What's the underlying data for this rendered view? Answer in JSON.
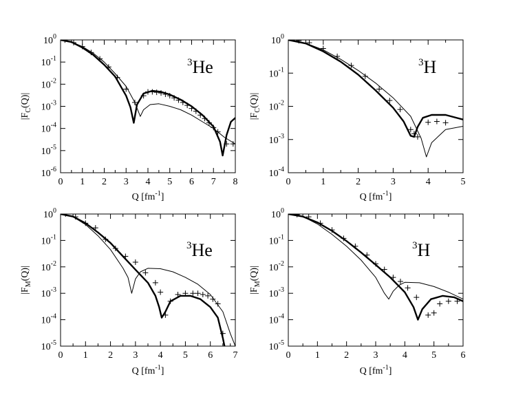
{
  "figure": {
    "panels": [
      {
        "nucleus_mass": "3",
        "nucleus_symbol": "He",
        "ylabel": {
          "pre": "|F",
          "sub": "C",
          "post": "(Q)|"
        },
        "xlabel": {
          "pre": "Q [fm",
          "sup": "-1",
          "post": "]"
        }
      },
      {
        "nucleus_mass": "3",
        "nucleus_symbol": "H",
        "ylabel": {
          "pre": "|F",
          "sub": "C",
          "post": "(Q)|"
        },
        "xlabel": {
          "pre": "Q [fm",
          "sup": "-1",
          "post": "]"
        }
      },
      {
        "nucleus_mass": "3",
        "nucleus_symbol": "He",
        "ylabel": {
          "pre": "|F",
          "sub": "M",
          "post": "(Q)|"
        },
        "xlabel": {
          "pre": "Q [fm",
          "sup": "-1",
          "post": "]"
        }
      },
      {
        "nucleus_mass": "3",
        "nucleus_symbol": "H",
        "ylabel": {
          "pre": "|F",
          "sub": "M",
          "post": "(Q)|"
        },
        "xlabel": {
          "pre": "Q [fm",
          "sup": "-1",
          "post": "]"
        }
      }
    ]
  },
  "chart_data": [
    {
      "type": "line",
      "yscale": "log",
      "xlim": [
        0,
        8
      ],
      "ylim_exp": [
        -6,
        0
      ],
      "xticks": [
        0,
        1,
        2,
        3,
        4,
        5,
        6,
        7,
        8
      ],
      "yticks_exp": [
        -6,
        -5,
        -4,
        -3,
        -2,
        -1,
        0
      ],
      "annotation": "3He",
      "series": [
        {
          "style": "thick",
          "points": [
            [
              0,
              1
            ],
            [
              0.5,
              0.8
            ],
            [
              1,
              0.45
            ],
            [
              1.5,
              0.21
            ],
            [
              2,
              0.075
            ],
            [
              2.5,
              0.022
            ],
            [
              3,
              0.003
            ],
            [
              3.2,
              0.0009
            ],
            [
              3.35,
              0.00018
            ],
            [
              3.5,
              0.0012
            ],
            [
              3.8,
              0.0038
            ],
            [
              4.2,
              0.005
            ],
            [
              4.6,
              0.0045
            ],
            [
              5,
              0.0034
            ],
            [
              5.5,
              0.002
            ],
            [
              6,
              0.001
            ],
            [
              6.5,
              0.0004
            ],
            [
              7,
              0.00012
            ],
            [
              7.3,
              2.5e-05
            ],
            [
              7.42,
              6e-06
            ],
            [
              7.6,
              5e-05
            ],
            [
              7.8,
              0.0002
            ],
            [
              8,
              0.0003
            ]
          ]
        },
        {
          "style": "thin",
          "points": [
            [
              0,
              1
            ],
            [
              0.5,
              0.82
            ],
            [
              1,
              0.5
            ],
            [
              1.5,
              0.25
            ],
            [
              2,
              0.1
            ],
            [
              2.5,
              0.03
            ],
            [
              3,
              0.008
            ],
            [
              3.4,
              0.0015
            ],
            [
              3.65,
              0.00035
            ],
            [
              3.8,
              0.0007
            ],
            [
              4.1,
              0.0012
            ],
            [
              4.5,
              0.0013
            ],
            [
              5,
              0.001
            ],
            [
              5.5,
              0.0007
            ],
            [
              6,
              0.0004
            ],
            [
              6.5,
              0.0002
            ],
            [
              7,
              0.0001
            ],
            [
              7.5,
              4e-05
            ],
            [
              8,
              2e-05
            ]
          ]
        },
        {
          "style": "markers",
          "points": [
            [
              0.2,
              0.98
            ],
            [
              0.6,
              0.75
            ],
            [
              1,
              0.5
            ],
            [
              1.4,
              0.27
            ],
            [
              1.8,
              0.14
            ],
            [
              2.2,
              0.06
            ],
            [
              2.6,
              0.02
            ],
            [
              3,
              0.006
            ],
            [
              3.4,
              0.0015
            ],
            [
              3.8,
              0.003
            ],
            [
              4.0,
              0.0045
            ],
            [
              4.2,
              0.0045
            ],
            [
              4.4,
              0.0043
            ],
            [
              4.6,
              0.004
            ],
            [
              4.8,
              0.0035
            ],
            [
              5.0,
              0.003
            ],
            [
              5.2,
              0.0024
            ],
            [
              5.4,
              0.0019
            ],
            [
              5.6,
              0.0015
            ],
            [
              5.8,
              0.0011
            ],
            [
              6.0,
              0.0008
            ],
            [
              6.2,
              0.0006
            ],
            [
              6.4,
              0.0004
            ],
            [
              6.6,
              0.00028
            ],
            [
              6.8,
              0.00018
            ],
            [
              7.0,
              0.00011
            ],
            [
              7.2,
              7e-05
            ],
            [
              7.6,
              2e-05
            ],
            [
              7.9,
              2e-05
            ]
          ]
        }
      ]
    },
    {
      "type": "line",
      "yscale": "log",
      "xlim": [
        0,
        5
      ],
      "ylim_exp": [
        -4,
        0
      ],
      "xticks": [
        0,
        1,
        2,
        3,
        4,
        5
      ],
      "yticks_exp": [
        -4,
        -3,
        -2,
        -1,
        0
      ],
      "annotation": "3H",
      "series": [
        {
          "style": "thick",
          "points": [
            [
              0,
              1
            ],
            [
              0.5,
              0.78
            ],
            [
              1,
              0.45
            ],
            [
              1.5,
              0.22
            ],
            [
              2,
              0.09
            ],
            [
              2.5,
              0.03
            ],
            [
              3,
              0.009
            ],
            [
              3.3,
              0.0035
            ],
            [
              3.5,
              0.0013
            ],
            [
              3.6,
              0.0012
            ],
            [
              3.7,
              0.0024
            ],
            [
              3.85,
              0.0045
            ],
            [
              4.1,
              0.0055
            ],
            [
              4.5,
              0.0055
            ],
            [
              5,
              0.004
            ]
          ]
        },
        {
          "style": "thin",
          "points": [
            [
              0,
              1
            ],
            [
              0.5,
              0.8
            ],
            [
              1,
              0.5
            ],
            [
              1.5,
              0.26
            ],
            [
              2,
              0.12
            ],
            [
              2.5,
              0.05
            ],
            [
              3,
              0.018
            ],
            [
              3.5,
              0.005
            ],
            [
              3.8,
              0.0011
            ],
            [
              3.95,
              0.0003
            ],
            [
              4.1,
              0.0008
            ],
            [
              4.5,
              0.002
            ],
            [
              5,
              0.0025
            ]
          ]
        },
        {
          "style": "markers",
          "points": [
            [
              0.3,
              0.95
            ],
            [
              0.6,
              0.82
            ],
            [
              1,
              0.55
            ],
            [
              1.4,
              0.32
            ],
            [
              1.8,
              0.17
            ],
            [
              2.2,
              0.08
            ],
            [
              2.6,
              0.033
            ],
            [
              2.9,
              0.015
            ],
            [
              3.2,
              0.008
            ],
            [
              3.5,
              0.002
            ],
            [
              3.6,
              0.0015
            ],
            [
              3.7,
              0.0012
            ],
            [
              4.0,
              0.0033
            ],
            [
              4.25,
              0.0035
            ],
            [
              4.5,
              0.0032
            ]
          ]
        }
      ]
    },
    {
      "type": "line",
      "yscale": "log",
      "xlim": [
        0,
        7
      ],
      "ylim_exp": [
        -5,
        0
      ],
      "xticks": [
        0,
        1,
        2,
        3,
        4,
        5,
        6,
        7
      ],
      "yticks_exp": [
        -5,
        -4,
        -3,
        -2,
        -1,
        0
      ],
      "annotation": "3He",
      "series": [
        {
          "style": "thick",
          "points": [
            [
              0,
              1
            ],
            [
              0.5,
              0.8
            ],
            [
              1,
              0.45
            ],
            [
              1.5,
              0.2
            ],
            [
              2,
              0.08
            ],
            [
              2.5,
              0.025
            ],
            [
              3,
              0.0078
            ],
            [
              3.5,
              0.0025
            ],
            [
              3.8,
              0.0008
            ],
            [
              3.95,
              0.0003
            ],
            [
              4.05,
              0.00012
            ],
            [
              4.2,
              0.0002
            ],
            [
              4.4,
              0.0005
            ],
            [
              4.8,
              0.0008
            ],
            [
              5.2,
              0.0008
            ],
            [
              5.6,
              0.0006
            ],
            [
              6,
              0.0003
            ],
            [
              6.3,
              0.00012
            ],
            [
              6.5,
              2e-05
            ],
            [
              6.6,
              7e-06
            ],
            [
              6.7,
              6e-06
            ],
            [
              7,
              1e-05
            ]
          ]
        },
        {
          "style": "thin",
          "points": [
            [
              0,
              1
            ],
            [
              0.5,
              0.78
            ],
            [
              1,
              0.4
            ],
            [
              1.5,
              0.15
            ],
            [
              2,
              0.045
            ],
            [
              2.5,
              0.009
            ],
            [
              2.7,
              0.004
            ],
            [
              2.85,
              0.001
            ],
            [
              3.0,
              0.0035
            ],
            [
              3.2,
              0.0065
            ],
            [
              3.5,
              0.0088
            ],
            [
              4,
              0.0085
            ],
            [
              4.5,
              0.0065
            ],
            [
              5,
              0.004
            ],
            [
              5.5,
              0.0022
            ],
            [
              6,
              0.0009
            ],
            [
              6.5,
              0.0002
            ],
            [
              6.8,
              3e-05
            ],
            [
              7,
              1e-05
            ]
          ]
        },
        {
          "style": "markers",
          "points": [
            [
              0.2,
              1
            ],
            [
              0.6,
              0.78
            ],
            [
              1,
              0.45
            ],
            [
              1.4,
              0.3
            ],
            [
              1.8,
              0.11
            ],
            [
              2.2,
              0.05
            ],
            [
              2.6,
              0.025
            ],
            [
              3,
              0.015
            ],
            [
              3.4,
              0.006
            ],
            [
              3.8,
              0.0025
            ],
            [
              4.0,
              0.0011
            ],
            [
              4.2,
              0.00015
            ],
            [
              4.4,
              0.0005
            ],
            [
              4.7,
              0.0009
            ],
            [
              5.0,
              0.001
            ],
            [
              5.3,
              0.001
            ],
            [
              5.5,
              0.001
            ],
            [
              5.7,
              0.0009
            ],
            [
              5.9,
              0.0008
            ],
            [
              6.1,
              0.0006
            ],
            [
              6.3,
              0.0004
            ],
            [
              6.5,
              3e-05
            ],
            [
              6.8,
              1e-05
            ]
          ]
        }
      ]
    },
    {
      "type": "line",
      "yscale": "log",
      "xlim": [
        0,
        6
      ],
      "ylim_exp": [
        -5,
        0
      ],
      "xticks": [
        0,
        1,
        2,
        3,
        4,
        5,
        6
      ],
      "yticks_exp": [
        -5,
        -4,
        -3,
        -2,
        -1,
        0
      ],
      "annotation": "3H",
      "series": [
        {
          "style": "thick",
          "points": [
            [
              0,
              1
            ],
            [
              0.5,
              0.8
            ],
            [
              1,
              0.48
            ],
            [
              1.5,
              0.23
            ],
            [
              2,
              0.095
            ],
            [
              2.5,
              0.035
            ],
            [
              3,
              0.012
            ],
            [
              3.5,
              0.004
            ],
            [
              4,
              0.0011
            ],
            [
              4.3,
              0.0003
            ],
            [
              4.45,
              0.0001
            ],
            [
              4.6,
              0.00025
            ],
            [
              4.9,
              0.0006
            ],
            [
              5.3,
              0.0008
            ],
            [
              5.7,
              0.0007
            ],
            [
              6,
              0.0005
            ]
          ]
        },
        {
          "style": "thin",
          "points": [
            [
              0,
              1
            ],
            [
              0.5,
              0.8
            ],
            [
              1,
              0.42
            ],
            [
              1.5,
              0.17
            ],
            [
              2,
              0.06
            ],
            [
              2.5,
              0.018
            ],
            [
              3,
              0.004
            ],
            [
              3.3,
              0.001
            ],
            [
              3.45,
              0.0006
            ],
            [
              3.6,
              0.0012
            ],
            [
              3.8,
              0.002
            ],
            [
              4.0,
              0.0026
            ],
            [
              4.5,
              0.0025
            ],
            [
              5,
              0.0018
            ],
            [
              5.5,
              0.0011
            ],
            [
              6,
              0.0006
            ]
          ]
        },
        {
          "style": "markers",
          "points": [
            [
              0.3,
              0.95
            ],
            [
              0.7,
              0.78
            ],
            [
              1.1,
              0.45
            ],
            [
              1.5,
              0.25
            ],
            [
              1.9,
              0.12
            ],
            [
              2.3,
              0.06
            ],
            [
              2.7,
              0.028
            ],
            [
              3.0,
              0.013
            ],
            [
              3.3,
              0.008
            ],
            [
              3.6,
              0.004
            ],
            [
              3.85,
              0.0028
            ],
            [
              4.1,
              0.0016
            ],
            [
              4.4,
              0.0007
            ],
            [
              4.8,
              0.00015
            ],
            [
              5.0,
              0.00018
            ],
            [
              5.2,
              0.0004
            ],
            [
              5.5,
              0.0005
            ],
            [
              5.8,
              0.0005
            ]
          ]
        }
      ]
    }
  ]
}
